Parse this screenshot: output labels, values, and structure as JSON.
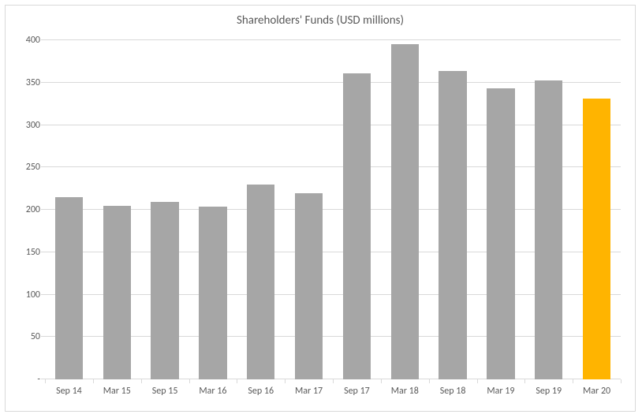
{
  "chart": {
    "type": "bar",
    "title": "Shareholders' Funds (USD millions)",
    "title_fontsize": 15,
    "title_color": "#595959",
    "background_color": "#ffffff",
    "frame_border_color": "#d9d9d9",
    "grid_color": "#d9d9d9",
    "axis_label_color": "#595959",
    "axis_label_fontsize": 12,
    "ylim": [
      0,
      400
    ],
    "ytick_step": 50,
    "yticks": [
      "-",
      "50",
      "100",
      "150",
      "200",
      "250",
      "300",
      "350",
      "400"
    ],
    "categories": [
      "Sep 14",
      "Mar 15",
      "Sep 15",
      "Mar 16",
      "Sep 16",
      "Mar 17",
      "Sep 17",
      "Mar 18",
      "Sep 18",
      "Mar 19",
      "Sep 19",
      "Mar 20"
    ],
    "values": [
      215,
      205,
      209,
      204,
      230,
      220,
      361,
      395,
      364,
      343,
      353,
      331
    ],
    "bar_colors": [
      "#a6a6a6",
      "#a6a6a6",
      "#a6a6a6",
      "#a6a6a6",
      "#a6a6a6",
      "#a6a6a6",
      "#a6a6a6",
      "#a6a6a6",
      "#a6a6a6",
      "#a6a6a6",
      "#a6a6a6",
      "#ffb400"
    ],
    "bar_width": 0.58
  }
}
